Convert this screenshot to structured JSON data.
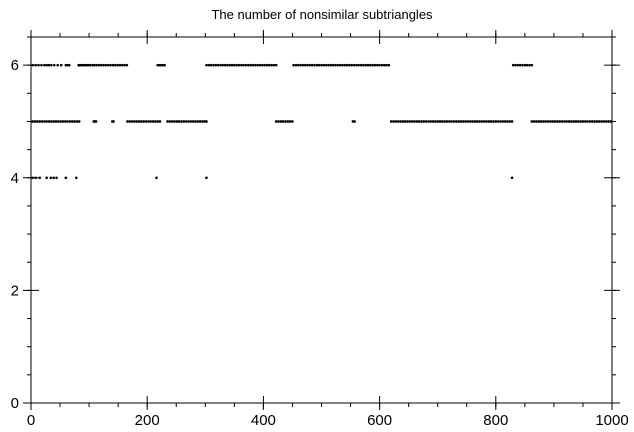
{
  "chart_data": {
    "type": "scatter",
    "title": "The number of nonsimilar subtriangles",
    "xlabel": "",
    "ylabel": "",
    "xlim": [
      0,
      1000
    ],
    "ylim": [
      0,
      6.5
    ],
    "x_ticks": [
      0,
      200,
      400,
      600,
      800,
      1000
    ],
    "y_ticks": [
      0,
      2,
      4,
      6
    ],
    "x_minor_step": 50,
    "y_minor_step": 0.5,
    "grid": false,
    "series_color": "#000000",
    "series": [
      {
        "y": 6,
        "x": [
          3,
          8,
          13,
          18,
          23,
          27,
          31,
          35,
          40,
          46,
          52,
          60,
          63,
          66,
          82,
          84,
          87,
          90,
          93,
          96,
          99,
          102,
          106,
          109,
          113,
          117,
          121,
          125,
          129,
          133,
          137,
          141,
          145,
          149,
          153,
          157,
          161,
          165,
          218,
          221,
          224,
          227,
          230,
          302,
          306,
          310,
          314,
          318,
          322,
          326,
          330,
          334,
          338,
          342,
          346,
          350,
          354,
          358,
          362,
          366,
          370,
          374,
          378,
          382,
          386,
          390,
          394,
          398,
          402,
          406,
          410,
          414,
          418,
          422,
          452,
          456,
          460,
          464,
          468,
          472,
          476,
          480,
          484,
          488,
          492,
          496,
          500,
          504,
          508,
          512,
          516,
          520,
          524,
          528,
          532,
          536,
          540,
          544,
          548,
          552,
          556,
          560,
          564,
          568,
          572,
          576,
          580,
          584,
          588,
          592,
          596,
          600,
          604,
          608,
          612,
          616,
          830,
          834,
          838,
          842,
          846,
          850,
          854,
          858,
          862
        ]
      },
      {
        "y": 5,
        "x": [
          3,
          7,
          11,
          15,
          19,
          23,
          27,
          31,
          35,
          39,
          43,
          47,
          51,
          55,
          59,
          63,
          67,
          71,
          75,
          79,
          83,
          108,
          110,
          112,
          140,
          142,
          166,
          170,
          174,
          178,
          182,
          186,
          190,
          194,
          198,
          202,
          206,
          210,
          214,
          218,
          222,
          235,
          239,
          243,
          247,
          251,
          255,
          259,
          263,
          267,
          271,
          275,
          279,
          283,
          287,
          291,
          295,
          299,
          302,
          422,
          426,
          430,
          434,
          438,
          442,
          446,
          450,
          554,
          557,
          620,
          624,
          628,
          632,
          636,
          640,
          644,
          648,
          652,
          656,
          660,
          664,
          668,
          672,
          676,
          680,
          684,
          688,
          692,
          696,
          700,
          704,
          708,
          712,
          716,
          720,
          724,
          728,
          732,
          736,
          740,
          744,
          748,
          752,
          756,
          760,
          764,
          768,
          772,
          776,
          780,
          784,
          788,
          792,
          796,
          800,
          804,
          808,
          812,
          816,
          820,
          824,
          828,
          862,
          866,
          870,
          874,
          878,
          882,
          886,
          890,
          894,
          898,
          902,
          906,
          910,
          914,
          918,
          922,
          926,
          930,
          934,
          938,
          942,
          946,
          950,
          954,
          958,
          962,
          966,
          970,
          974,
          978,
          982,
          986,
          990,
          994,
          998
        ]
      },
      {
        "y": 4,
        "x": [
          3,
          8,
          15,
          27,
          34,
          39,
          44,
          60,
          78,
          216,
          302,
          828
        ]
      }
    ]
  }
}
